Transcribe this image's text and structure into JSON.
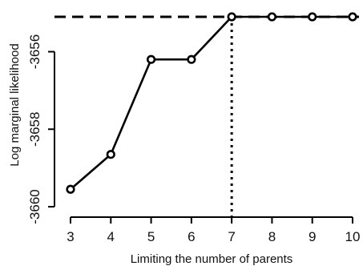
{
  "chart_data": {
    "type": "line",
    "title": "",
    "xlabel": "Limiting the number of parents",
    "ylabel": "Log marginal likelihood",
    "x": [
      3,
      4,
      5,
      6,
      7,
      8,
      9,
      10
    ],
    "series": [
      {
        "values": [
          -3659.55,
          -3658.65,
          -3656.2,
          -3656.2,
          -3655.1,
          -3655.1,
          -3655.1,
          -3655.1
        ]
      }
    ],
    "xlim": [
      3,
      10
    ],
    "ylim": [
      -3660,
      -3655.1
    ],
    "x_ticks": [
      3,
      4,
      5,
      6,
      7,
      8,
      9,
      10
    ],
    "x_tick_labels": [
      "3",
      "4",
      "5",
      "6",
      "7",
      "8",
      "9",
      "10"
    ],
    "y_ticks": [
      -3660,
      -3658,
      -3656
    ],
    "y_tick_labels": [
      "-3660",
      "-3658",
      "-3656"
    ],
    "reference_lines": {
      "horizontal_dashed_y": -3655.1,
      "vertical_dotted_x": 7
    },
    "grid": false,
    "legend": "none",
    "colors": {
      "line": "#000000",
      "axis": "#000000",
      "background": "#ffffff"
    }
  }
}
